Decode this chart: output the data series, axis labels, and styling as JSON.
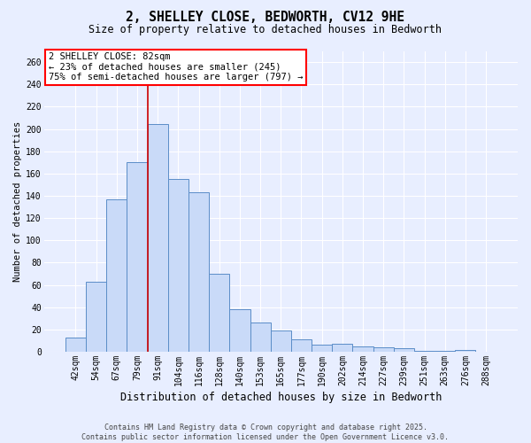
{
  "title_line1": "2, SHELLEY CLOSE, BEDWORTH, CV12 9HE",
  "title_line2": "Size of property relative to detached houses in Bedworth",
  "xlabel": "Distribution of detached houses by size in Bedworth",
  "ylabel": "Number of detached properties",
  "bar_labels": [
    "42sqm",
    "54sqm",
    "67sqm",
    "79sqm",
    "91sqm",
    "104sqm",
    "116sqm",
    "128sqm",
    "140sqm",
    "153sqm",
    "165sqm",
    "177sqm",
    "190sqm",
    "202sqm",
    "214sqm",
    "227sqm",
    "239sqm",
    "251sqm",
    "263sqm",
    "276sqm",
    "288sqm"
  ],
  "bar_heights": [
    13,
    63,
    137,
    170,
    204,
    155,
    143,
    70,
    38,
    26,
    19,
    11,
    6,
    7,
    5,
    4,
    3,
    1,
    1,
    2,
    0
  ],
  "bar_color": "#c9daf8",
  "bar_edge_color": "#5b8dc8",
  "background_color": "#e8eeff",
  "grid_color": "#ffffff",
  "property_label": "2 SHELLEY CLOSE: 82sqm",
  "pct_smaller": 23,
  "pct_smaller_count": 245,
  "pct_larger_semi": 75,
  "pct_larger_semi_count": 797,
  "vline_index": 3.5,
  "footer_line1": "Contains HM Land Registry data © Crown copyright and database right 2025.",
  "footer_line2": "Contains public sector information licensed under the Open Government Licence v3.0.",
  "ylim": [
    0,
    270
  ],
  "yticks": [
    0,
    20,
    40,
    60,
    80,
    100,
    120,
    140,
    160,
    180,
    200,
    220,
    240,
    260
  ],
  "title_fontsize": 10.5,
  "subtitle_fontsize": 8.5,
  "ylabel_fontsize": 7.5,
  "xlabel_fontsize": 8.5,
  "tick_fontsize": 7,
  "annot_fontsize": 7.5,
  "footer_fontsize": 6
}
